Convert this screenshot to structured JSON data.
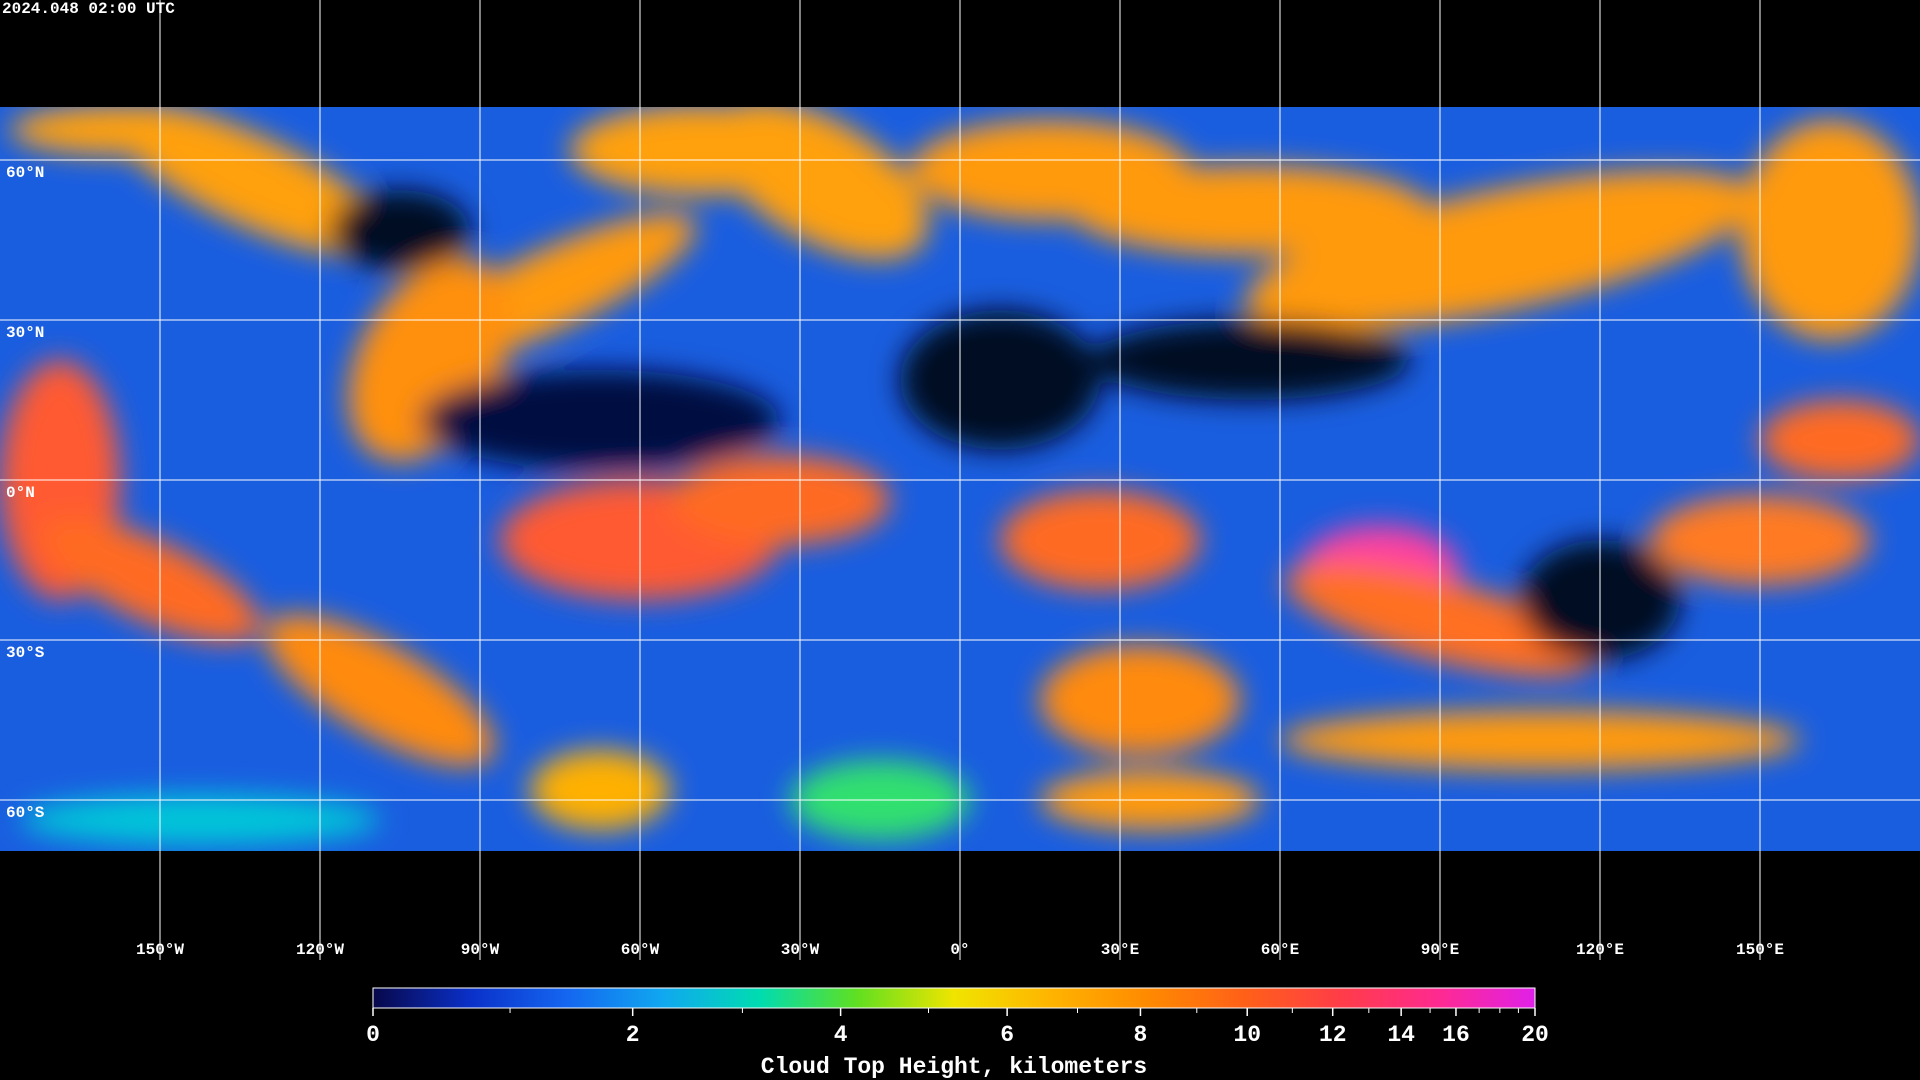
{
  "timestamp": "2024.048 02:00 UTC",
  "map": {
    "meridians": [
      {
        "value": -150,
        "label": "150°W"
      },
      {
        "value": -120,
        "label": "120°W"
      },
      {
        "value": -90,
        "label": "90°W"
      },
      {
        "value": -60,
        "label": "60°W"
      },
      {
        "value": -30,
        "label": "30°W"
      },
      {
        "value": 0,
        "label": "0°"
      },
      {
        "value": 30,
        "label": "30°E"
      },
      {
        "value": 60,
        "label": "60°E"
      },
      {
        "value": 90,
        "label": "90°E"
      },
      {
        "value": 120,
        "label": "120°E"
      },
      {
        "value": 150,
        "label": "150°E"
      }
    ],
    "parallels": [
      {
        "value": 60,
        "label": "60°N"
      },
      {
        "value": 30,
        "label": "30°N"
      },
      {
        "value": 0,
        "label": "0°N"
      },
      {
        "value": -30,
        "label": "30°S"
      },
      {
        "value": -60,
        "label": "60°S"
      }
    ]
  },
  "colorbar": {
    "title": "Cloud Top Height, kilometers",
    "lim": [
      0,
      20
    ],
    "ticks": [
      0,
      2,
      4,
      6,
      8,
      10,
      12,
      14,
      16,
      20
    ],
    "minor_ticks": [
      1,
      3,
      5,
      7,
      9,
      11,
      13,
      15,
      17,
      18,
      19
    ],
    "colors": [
      "#08084a",
      "#0a30c8",
      "#1466f0",
      "#10a8f0",
      "#00dcb0",
      "#60e020",
      "#f0e400",
      "#ffb400",
      "#ff8a00",
      "#ff6018",
      "#ff3c48",
      "#ff2a90",
      "#e020e8"
    ]
  }
}
